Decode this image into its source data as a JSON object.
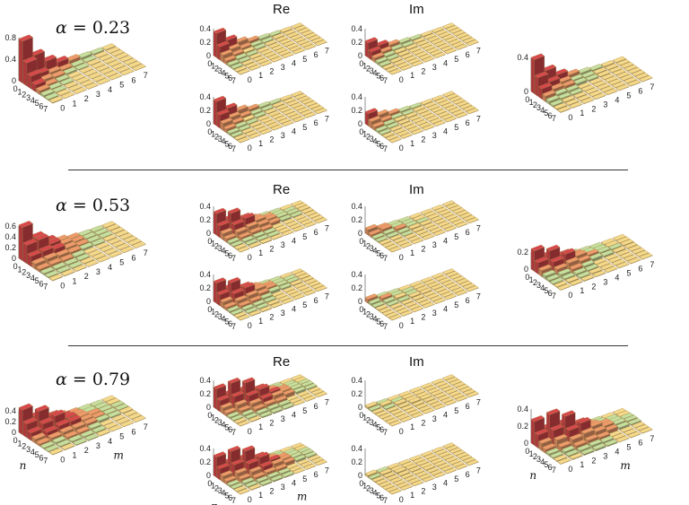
{
  "chart_data": {
    "type": "bar3d",
    "title": "",
    "column_labels": [
      "Re",
      "Im"
    ],
    "axis_ticks": [
      "0",
      "1",
      "2",
      "3",
      "4",
      "5",
      "6",
      "7"
    ],
    "axis_labels": {
      "x": "n",
      "y": "m"
    },
    "colors": {
      "red": "#d8474b",
      "orange": "#ef9a6b",
      "yellow": "#f5d98a",
      "green": "#c4df9e",
      "blue": "#86c3d8"
    },
    "rows": [
      {
        "alpha_prefix": "α = ",
        "alpha_value": "0.23",
        "left_z_ticks": [
          "0",
          "0.4",
          "0.8"
        ],
        "re_z_ticks": [
          "0",
          "0.2",
          "0.4"
        ],
        "im_z_ticks": [
          "0",
          "0.2",
          "0.4"
        ],
        "right_z_ticks": [
          "0",
          "0.4"
        ],
        "left_peaks": [
          0.78,
          0.14,
          0.05
        ],
        "re_top_peaks": [
          0.36,
          0.1,
          0.03
        ],
        "im_top_peaks": [
          0.22,
          0.06,
          0.02
        ],
        "re_bot_peaks": [
          0.36,
          0.1,
          0.03
        ],
        "im_bot_peaks": [
          0.18,
          0.05,
          0.02
        ],
        "right_peaks": [
          0.4,
          0.12,
          0.05
        ]
      },
      {
        "alpha_prefix": "α = ",
        "alpha_value": "0.53",
        "left_z_ticks": [
          "0",
          "0.2",
          "0.4",
          "0.6"
        ],
        "re_z_ticks": [
          "0",
          "0.2",
          "0.4"
        ],
        "im_z_ticks": [
          "0",
          "0.2",
          "0.4"
        ],
        "right_z_ticks": [
          "0",
          "0.2"
        ],
        "left_peaks": [
          0.62,
          0.35,
          0.15,
          0.06
        ],
        "re_top_peaks": [
          0.32,
          0.3,
          0.2,
          0.08
        ],
        "im_top_peaks": [
          0.08,
          0.06,
          0.04,
          0.02
        ],
        "re_bot_peaks": [
          0.3,
          0.28,
          0.18,
          0.07
        ],
        "im_bot_peaks": [
          0.06,
          0.05,
          0.03,
          0.02
        ],
        "right_peaks": [
          0.24,
          0.22,
          0.16,
          0.06
        ]
      },
      {
        "alpha_prefix": "α = ",
        "alpha_value": "0.79",
        "left_z_ticks": [
          "0",
          "0.2",
          "0.4"
        ],
        "re_z_ticks": [
          "0",
          "0.2",
          "0.4"
        ],
        "im_z_ticks": [
          "0",
          "0.2",
          "0.4"
        ],
        "right_z_ticks": [
          "0",
          "0.2",
          "0.4"
        ],
        "left_peaks": [
          0.46,
          0.4,
          0.28,
          0.15,
          0.07
        ],
        "re_top_peaks": [
          0.3,
          0.36,
          0.34,
          0.22,
          0.1
        ],
        "im_top_peaks": [
          0.03,
          0.03,
          0.02,
          0.02,
          0.01
        ],
        "re_bot_peaks": [
          0.3,
          0.36,
          0.34,
          0.22,
          0.1
        ],
        "im_bot_peaks": [
          0.03,
          0.02,
          0.02,
          0.01,
          0.01
        ],
        "right_peaks": [
          0.28,
          0.34,
          0.3,
          0.2,
          0.08
        ]
      }
    ]
  }
}
